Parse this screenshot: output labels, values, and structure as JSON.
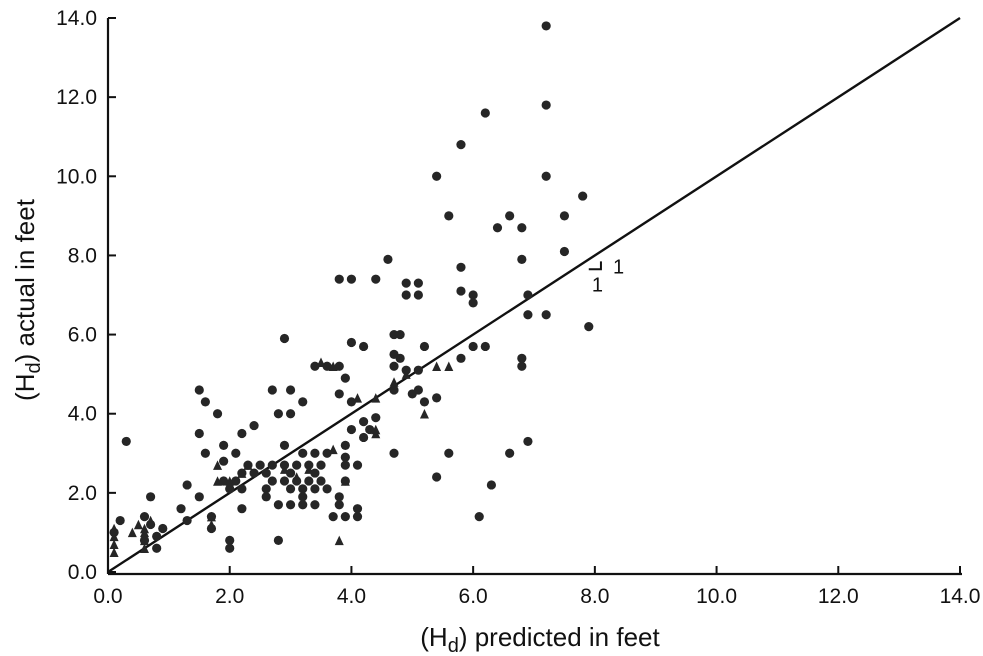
{
  "chart_data": {
    "type": "scatter",
    "title": "",
    "xlabel": "(Hd) predicted in feet",
    "ylabel": "(Hd) actual in feet",
    "xlabel_parts": [
      "(H",
      "d",
      ") predicted in feet"
    ],
    "ylabel_parts": [
      "(H",
      "d",
      ") actual in feet"
    ],
    "xlim": [
      0,
      14
    ],
    "ylim": [
      0,
      14
    ],
    "x_ticks": [
      "0.0",
      "2.0",
      "4.0",
      "6.0",
      "8.0",
      "10.0",
      "12.0",
      "14.0"
    ],
    "y_ticks": [
      "0.0",
      "2.0",
      "4.0",
      "6.0",
      "8.0",
      "10.0",
      "12.0",
      "14.0"
    ],
    "grid": false,
    "reference_line": {
      "label": "1:1",
      "from": [
        0,
        0
      ],
      "to": [
        14,
        14
      ],
      "slope_marker": "1",
      "slope_marker_side": "1"
    },
    "series": [
      {
        "marker": "circle",
        "points": [
          [
            7.2,
            13.8
          ],
          [
            6.2,
            11.6
          ],
          [
            7.2,
            11.8
          ],
          [
            5.8,
            10.8
          ],
          [
            5.4,
            10.0
          ],
          [
            7.2,
            10.0
          ],
          [
            5.6,
            9.0
          ],
          [
            6.6,
            9.0
          ],
          [
            7.5,
            9.0
          ],
          [
            7.8,
            9.5
          ],
          [
            6.4,
            8.7
          ],
          [
            6.8,
            8.7
          ],
          [
            7.5,
            8.1
          ],
          [
            4.6,
            7.9
          ],
          [
            5.8,
            7.7
          ],
          [
            6.8,
            7.9
          ],
          [
            3.8,
            7.4
          ],
          [
            4.0,
            7.4
          ],
          [
            4.4,
            7.4
          ],
          [
            4.9,
            7.3
          ],
          [
            5.1,
            7.3
          ],
          [
            4.9,
            7.0
          ],
          [
            5.1,
            7.0
          ],
          [
            5.8,
            7.1
          ],
          [
            6.0,
            7.0
          ],
          [
            6.9,
            7.0
          ],
          [
            6.0,
            6.8
          ],
          [
            6.9,
            6.5
          ],
          [
            7.2,
            6.5
          ],
          [
            7.9,
            6.2
          ],
          [
            2.9,
            5.9
          ],
          [
            4.7,
            6.0
          ],
          [
            4.8,
            6.0
          ],
          [
            4.0,
            5.8
          ],
          [
            4.2,
            5.7
          ],
          [
            5.2,
            5.7
          ],
          [
            6.0,
            5.7
          ],
          [
            6.2,
            5.7
          ],
          [
            4.7,
            5.5
          ],
          [
            4.8,
            5.4
          ],
          [
            5.8,
            5.4
          ],
          [
            6.8,
            5.4
          ],
          [
            3.4,
            5.2
          ],
          [
            3.6,
            5.2
          ],
          [
            3.8,
            5.2
          ],
          [
            4.7,
            5.2
          ],
          [
            4.9,
            5.1
          ],
          [
            5.1,
            5.1
          ],
          [
            6.8,
            5.2
          ],
          [
            3.9,
            4.9
          ],
          [
            1.5,
            4.6
          ],
          [
            2.7,
            4.6
          ],
          [
            3.0,
            4.6
          ],
          [
            3.8,
            4.5
          ],
          [
            5.0,
            4.5
          ],
          [
            1.6,
            4.3
          ],
          [
            3.2,
            4.3
          ],
          [
            4.0,
            4.3
          ],
          [
            5.2,
            4.3
          ],
          [
            4.7,
            4.6
          ],
          [
            5.4,
            4.4
          ],
          [
            5.1,
            4.6
          ],
          [
            1.8,
            4.0
          ],
          [
            2.8,
            4.0
          ],
          [
            3.0,
            4.0
          ],
          [
            4.4,
            3.9
          ],
          [
            4.2,
            3.8
          ],
          [
            4.0,
            3.6
          ],
          [
            4.3,
            3.6
          ],
          [
            2.4,
            3.7
          ],
          [
            2.2,
            3.5
          ],
          [
            1.5,
            3.5
          ],
          [
            4.2,
            3.4
          ],
          [
            0.3,
            3.3
          ],
          [
            1.9,
            3.2
          ],
          [
            2.9,
            3.2
          ],
          [
            3.2,
            3.0
          ],
          [
            1.6,
            3.0
          ],
          [
            2.1,
            3.0
          ],
          [
            3.4,
            3.0
          ],
          [
            3.6,
            3.0
          ],
          [
            3.9,
            3.2
          ],
          [
            3.9,
            2.9
          ],
          [
            4.7,
            3.0
          ],
          [
            5.6,
            3.0
          ],
          [
            6.6,
            3.0
          ],
          [
            6.9,
            3.3
          ],
          [
            1.9,
            2.8
          ],
          [
            2.3,
            2.7
          ],
          [
            2.5,
            2.7
          ],
          [
            2.7,
            2.7
          ],
          [
            2.9,
            2.7
          ],
          [
            3.1,
            2.7
          ],
          [
            3.3,
            2.7
          ],
          [
            3.5,
            2.7
          ],
          [
            3.9,
            2.7
          ],
          [
            4.1,
            2.7
          ],
          [
            2.2,
            2.5
          ],
          [
            2.4,
            2.5
          ],
          [
            2.6,
            2.5
          ],
          [
            3.0,
            2.5
          ],
          [
            3.4,
            2.5
          ],
          [
            1.9,
            2.3
          ],
          [
            2.1,
            2.3
          ],
          [
            2.7,
            2.3
          ],
          [
            2.9,
            2.3
          ],
          [
            3.1,
            2.3
          ],
          [
            3.3,
            2.3
          ],
          [
            3.5,
            2.3
          ],
          [
            3.9,
            2.3
          ],
          [
            5.4,
            2.4
          ],
          [
            1.3,
            2.2
          ],
          [
            2.0,
            2.1
          ],
          [
            2.2,
            2.1
          ],
          [
            2.6,
            2.1
          ],
          [
            3.0,
            2.1
          ],
          [
            3.2,
            2.1
          ],
          [
            3.4,
            2.1
          ],
          [
            3.6,
            2.1
          ],
          [
            6.3,
            2.2
          ],
          [
            1.5,
            1.9
          ],
          [
            2.6,
            1.9
          ],
          [
            3.2,
            1.9
          ],
          [
            3.8,
            1.9
          ],
          [
            0.7,
            1.9
          ],
          [
            2.8,
            1.7
          ],
          [
            3.0,
            1.7
          ],
          [
            3.2,
            1.7
          ],
          [
            3.4,
            1.7
          ],
          [
            3.8,
            1.7
          ],
          [
            1.2,
            1.6
          ],
          [
            2.2,
            1.6
          ],
          [
            4.1,
            1.6
          ],
          [
            1.7,
            1.4
          ],
          [
            3.7,
            1.4
          ],
          [
            3.9,
            1.4
          ],
          [
            4.1,
            1.4
          ],
          [
            6.1,
            1.4
          ],
          [
            0.6,
            1.4
          ],
          [
            0.2,
            1.3
          ],
          [
            1.3,
            1.3
          ],
          [
            0.7,
            1.2
          ],
          [
            0.9,
            1.1
          ],
          [
            0.1,
            1.0
          ],
          [
            1.7,
            1.1
          ],
          [
            0.8,
            0.9
          ],
          [
            0.6,
            0.8
          ],
          [
            2.0,
            0.8
          ],
          [
            2.8,
            0.8
          ],
          [
            2.0,
            0.6
          ],
          [
            0.8,
            0.6
          ]
        ]
      },
      {
        "marker": "triangle",
        "points": [
          [
            0.1,
            1.1
          ],
          [
            0.1,
            0.9
          ],
          [
            0.1,
            0.7
          ],
          [
            0.1,
            0.5
          ],
          [
            0.6,
            1.0
          ],
          [
            0.6,
            0.8
          ],
          [
            0.6,
            0.6
          ],
          [
            0.5,
            1.2
          ],
          [
            0.7,
            1.3
          ],
          [
            0.4,
            1.0
          ],
          [
            0.6,
            1.1
          ],
          [
            1.7,
            1.2
          ],
          [
            1.7,
            1.4
          ],
          [
            1.8,
            2.3
          ],
          [
            2.2,
            2.5
          ],
          [
            2.3,
            2.7
          ],
          [
            2.9,
            2.6
          ],
          [
            3.1,
            2.4
          ],
          [
            3.3,
            2.6
          ],
          [
            3.5,
            5.3
          ],
          [
            3.7,
            3.1
          ],
          [
            3.7,
            5.2
          ],
          [
            3.8,
            0.8
          ],
          [
            4.1,
            4.4
          ],
          [
            4.4,
            4.4
          ],
          [
            4.4,
            3.5
          ],
          [
            4.4,
            3.6
          ],
          [
            5.4,
            5.2
          ],
          [
            5.6,
            5.2
          ],
          [
            5.2,
            4.0
          ],
          [
            4.9,
            5.0
          ],
          [
            3.9,
            2.3
          ],
          [
            4.7,
            4.8
          ],
          [
            1.8,
            2.7
          ],
          [
            2.0,
            2.3
          ]
        ]
      }
    ]
  }
}
